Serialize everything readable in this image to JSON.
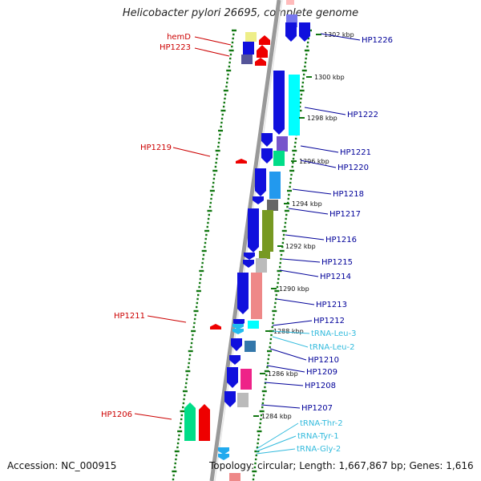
{
  "title": "Helicobacter pylori 26695, complete genome",
  "accession": "Accession: NC_000915",
  "topology": "Topology: circular; Length: 1,667,867 bp; Genes: 1,616",
  "colors": {
    "rc_label": "#cc0000",
    "fw_label": "#000099",
    "trna_label": "#33bbdd",
    "backbone": "#999999",
    "dots": "#117711"
  },
  "genome_track": {
    "scale_unit": "kbp",
    "ticks": [
      "1302 kbp",
      "1300 kbp",
      "1298 kbp",
      "1296 kbp",
      "1294 kbp",
      "1292 kbp",
      "1290 kbp",
      "1288 kbp",
      "1286 kbp",
      "1284 kbp"
    ]
  },
  "reverse_genes": [
    "hemD",
    "HP1223",
    "HP1219",
    "HP1211",
    "HP1206"
  ],
  "forward_genes": [
    "HP1226",
    "HP1222",
    "HP1221",
    "HP1220",
    "HP1218",
    "HP1217",
    "HP1216",
    "HP1215",
    "HP1214",
    "HP1213",
    "HP1212",
    "HP1210",
    "HP1209",
    "HP1208",
    "HP1207"
  ],
  "trna_genes": [
    "tRNA-Leu-3",
    "tRNA-Leu-2",
    "tRNA-Thr-2",
    "tRNA-Tyr-1",
    "tRNA-Gly-2"
  ]
}
